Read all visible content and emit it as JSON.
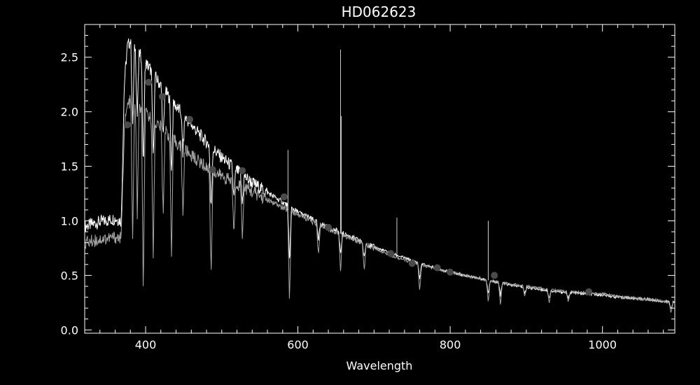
{
  "chart_data": {
    "type": "line",
    "title": "HD062623",
    "xlabel": "Wavelength",
    "ylabel": "",
    "xlim": [
      320,
      1095
    ],
    "ylim": [
      -0.03,
      2.8
    ],
    "x_ticks": [
      400,
      600,
      800,
      1000
    ],
    "x_tick_labels": [
      "400",
      "600",
      "800",
      "1000"
    ],
    "y_ticks": [
      0.0,
      0.5,
      1.0,
      1.5,
      2.0,
      2.5
    ],
    "y_tick_labels": [
      "0.0",
      "0.5",
      "1.0",
      "1.5",
      "2.0",
      "2.5"
    ],
    "grid": false,
    "legend": "none",
    "colors": {
      "background": "#000000",
      "axes": "#ffffff",
      "series_upper": "#ffffff",
      "series_lower": "#a6a6a6",
      "markers": "#4a4a4a"
    },
    "series": [
      {
        "x": [
          320,
          340,
          360,
          368,
          372,
          376,
          380,
          390,
          400,
          410,
          420,
          440,
          460,
          480,
          500,
          520,
          540,
          560,
          580,
          600,
          620,
          640,
          660,
          680,
          700,
          720,
          740,
          760,
          780,
          800,
          820,
          840,
          860,
          880,
          900,
          920,
          940,
          960,
          980,
          1000,
          1020,
          1040,
          1060,
          1080,
          1095
        ],
        "y": [
          0.95,
          0.99,
          1.02,
          1.0,
          2.25,
          2.6,
          2.65,
          2.55,
          2.45,
          2.35,
          2.24,
          2.05,
          1.88,
          1.72,
          1.58,
          1.46,
          1.35,
          1.26,
          1.17,
          1.08,
          1.01,
          0.94,
          0.88,
          0.82,
          0.76,
          0.71,
          0.66,
          0.61,
          0.57,
          0.53,
          0.5,
          0.47,
          0.44,
          0.41,
          0.39,
          0.37,
          0.35,
          0.34,
          0.33,
          0.32,
          0.3,
          0.29,
          0.28,
          0.26,
          0.25
        ]
      },
      {
        "x": [
          320,
          340,
          360,
          368,
          372,
          376,
          380,
          390,
          400,
          410,
          420,
          440,
          460,
          480,
          500,
          520,
          540,
          560,
          580,
          600,
          620,
          640,
          660,
          680,
          700,
          720,
          740,
          760,
          780,
          800,
          820,
          840,
          860,
          880,
          900,
          920,
          940,
          960,
          980,
          1000,
          1020,
          1040,
          1060,
          1080,
          1095
        ],
        "y": [
          0.8,
          0.83,
          0.85,
          0.84,
          1.85,
          2.05,
          2.1,
          2.05,
          1.98,
          1.92,
          1.86,
          1.72,
          1.6,
          1.49,
          1.41,
          1.34,
          1.27,
          1.19,
          1.12,
          1.06,
          0.99,
          0.93,
          0.87,
          0.81,
          0.75,
          0.69,
          0.64,
          0.6,
          0.56,
          0.53,
          0.5,
          0.47,
          0.44,
          0.42,
          0.4,
          0.38,
          0.36,
          0.35,
          0.34,
          0.33,
          0.31,
          0.29,
          0.28,
          0.26,
          0.25
        ]
      }
    ],
    "absorption_lines": [
      {
        "x": 383,
        "depth": 1.3
      },
      {
        "x": 389,
        "depth": 1.0
      },
      {
        "x": 397,
        "depth": 1.7
      },
      {
        "x": 410,
        "depth": 1.3
      },
      {
        "x": 423,
        "depth": 0.8
      },
      {
        "x": 434,
        "depth": 1.1
      },
      {
        "x": 449,
        "depth": 0.6
      },
      {
        "x": 486,
        "depth": 1.0
      },
      {
        "x": 516,
        "depth": 0.5
      },
      {
        "x": 527,
        "depth": 0.45
      },
      {
        "x": 589,
        "depth": 0.85
      },
      {
        "x": 627,
        "depth": 0.3
      },
      {
        "x": 656,
        "depth": 0.35
      },
      {
        "x": 687,
        "depth": 0.25
      },
      {
        "x": 760,
        "depth": 0.25
      },
      {
        "x": 850,
        "depth": 0.2
      },
      {
        "x": 866,
        "depth": 0.2
      },
      {
        "x": 898,
        "depth": 0.1
      },
      {
        "x": 930,
        "depth": 0.12
      },
      {
        "x": 955,
        "depth": 0.1
      },
      {
        "x": 1090,
        "depth": 0.1
      }
    ],
    "emission_spikes": [
      {
        "x": 587,
        "y": 1.65
      },
      {
        "x": 656,
        "y": 2.57
      },
      {
        "x": 657,
        "y": 1.96
      },
      {
        "x": 730,
        "y": 1.03
      },
      {
        "x": 850,
        "y": 1.0
      }
    ],
    "markers": [
      {
        "x": 376,
        "y": 1.88
      },
      {
        "x": 404,
        "y": 2.27
      },
      {
        "x": 422,
        "y": 2.14
      },
      {
        "x": 458,
        "y": 1.93
      },
      {
        "x": 488,
        "y": 1.47
      },
      {
        "x": 527,
        "y": 1.46
      },
      {
        "x": 582,
        "y": 1.22
      },
      {
        "x": 640,
        "y": 0.94
      },
      {
        "x": 722,
        "y": 0.7
      },
      {
        "x": 750,
        "y": 0.61
      },
      {
        "x": 783,
        "y": 0.57
      },
      {
        "x": 800,
        "y": 0.53
      },
      {
        "x": 858,
        "y": 0.5
      },
      {
        "x": 982,
        "y": 0.35
      }
    ]
  }
}
